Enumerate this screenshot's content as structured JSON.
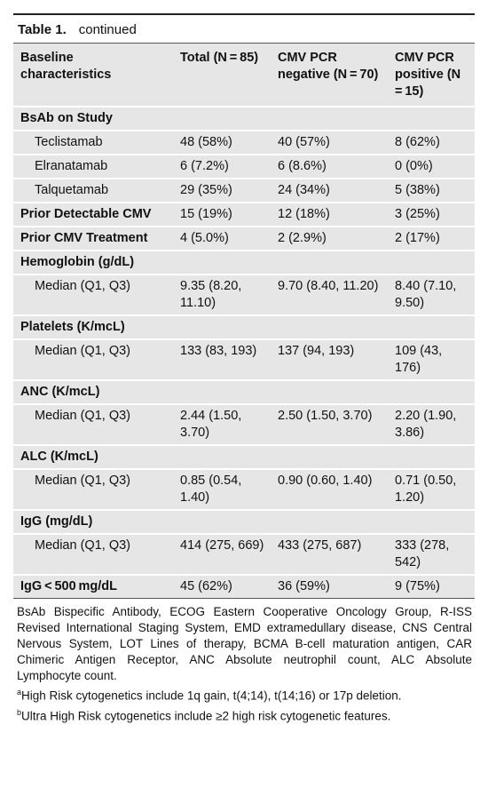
{
  "table": {
    "label": "Table 1.",
    "caption": "continued",
    "header": [
      "Baseline characteristics",
      "Total (N = 85)",
      "CMV PCR negative (N = 70)",
      "CMV PCR positive (N = 15)"
    ],
    "groups": [
      {
        "label": "BsAb on Study",
        "items": [
          {
            "label": "Teclistamab",
            "values": [
              "48 (58%)",
              "40 (57%)",
              "8 (62%)"
            ]
          },
          {
            "label": "Elranatamab",
            "values": [
              "6 (7.2%)",
              "6 (8.6%)",
              "0 (0%)"
            ]
          },
          {
            "label": "Talquetamab",
            "values": [
              "29 (35%)",
              "24 (34%)",
              "5 (38%)"
            ]
          }
        ]
      },
      {
        "label": "Prior Detectable CMV",
        "values": [
          "15 (19%)",
          "12 (18%)",
          "3 (25%)"
        ]
      },
      {
        "label": "Prior CMV Treatment",
        "values": [
          "4 (5.0%)",
          "2 (2.9%)",
          "2 (17%)"
        ]
      },
      {
        "label": "Hemoglobin (g/dL)",
        "items": [
          {
            "label": "Median (Q1, Q3)",
            "values": [
              "9.35 (8.20, 11.10)",
              "9.70 (8.40, 11.20)",
              "8.40 (7.10, 9.50)"
            ]
          }
        ]
      },
      {
        "label": "Platelets (K/mcL)",
        "items": [
          {
            "label": "Median (Q1, Q3)",
            "values": [
              "133 (83, 193)",
              "137 (94, 193)",
              "109 (43, 176)"
            ]
          }
        ]
      },
      {
        "label": "ANC (K/mcL)",
        "items": [
          {
            "label": "Median (Q1, Q3)",
            "values": [
              "2.44 (1.50, 3.70)",
              "2.50 (1.50, 3.70)",
              "2.20 (1.90, 3.86)"
            ]
          }
        ]
      },
      {
        "label": "ALC (K/mcL)",
        "items": [
          {
            "label": "Median (Q1, Q3)",
            "values": [
              "0.85 (0.54, 1.40)",
              "0.90 (0.60, 1.40)",
              "0.71 (0.50, 1.20)"
            ]
          }
        ]
      },
      {
        "label": "IgG (mg/dL)",
        "items": [
          {
            "label": "Median (Q1, Q3)",
            "values": [
              "414 (275, 669)",
              "433 (275, 687)",
              "333 (278, 542)"
            ]
          }
        ]
      },
      {
        "label": "IgG < 500 mg/dL",
        "values": [
          "45 (62%)",
          "36 (59%)",
          "9 (75%)"
        ]
      }
    ],
    "abbreviations": "BsAb Bispecific Antibody, ECOG Eastern Cooperative Oncology Group, R-ISS Revised International Staging System, EMD extramedullary disease, CNS Central Nervous System, LOT Lines of therapy, BCMA B-cell maturation antigen, CAR Chimeric Antigen Receptor, ANC Absolute neutrophil count, ALC Absolute Lymphocyte count.",
    "footnotes": [
      {
        "mark": "a",
        "text": "High Risk cytogenetics include 1q gain, t(4;14), t(14;16) or 17p deletion."
      },
      {
        "mark": "b",
        "text": "Ultra High Risk cytogenetics include ≥2 high risk cytogenetic features."
      }
    ]
  }
}
